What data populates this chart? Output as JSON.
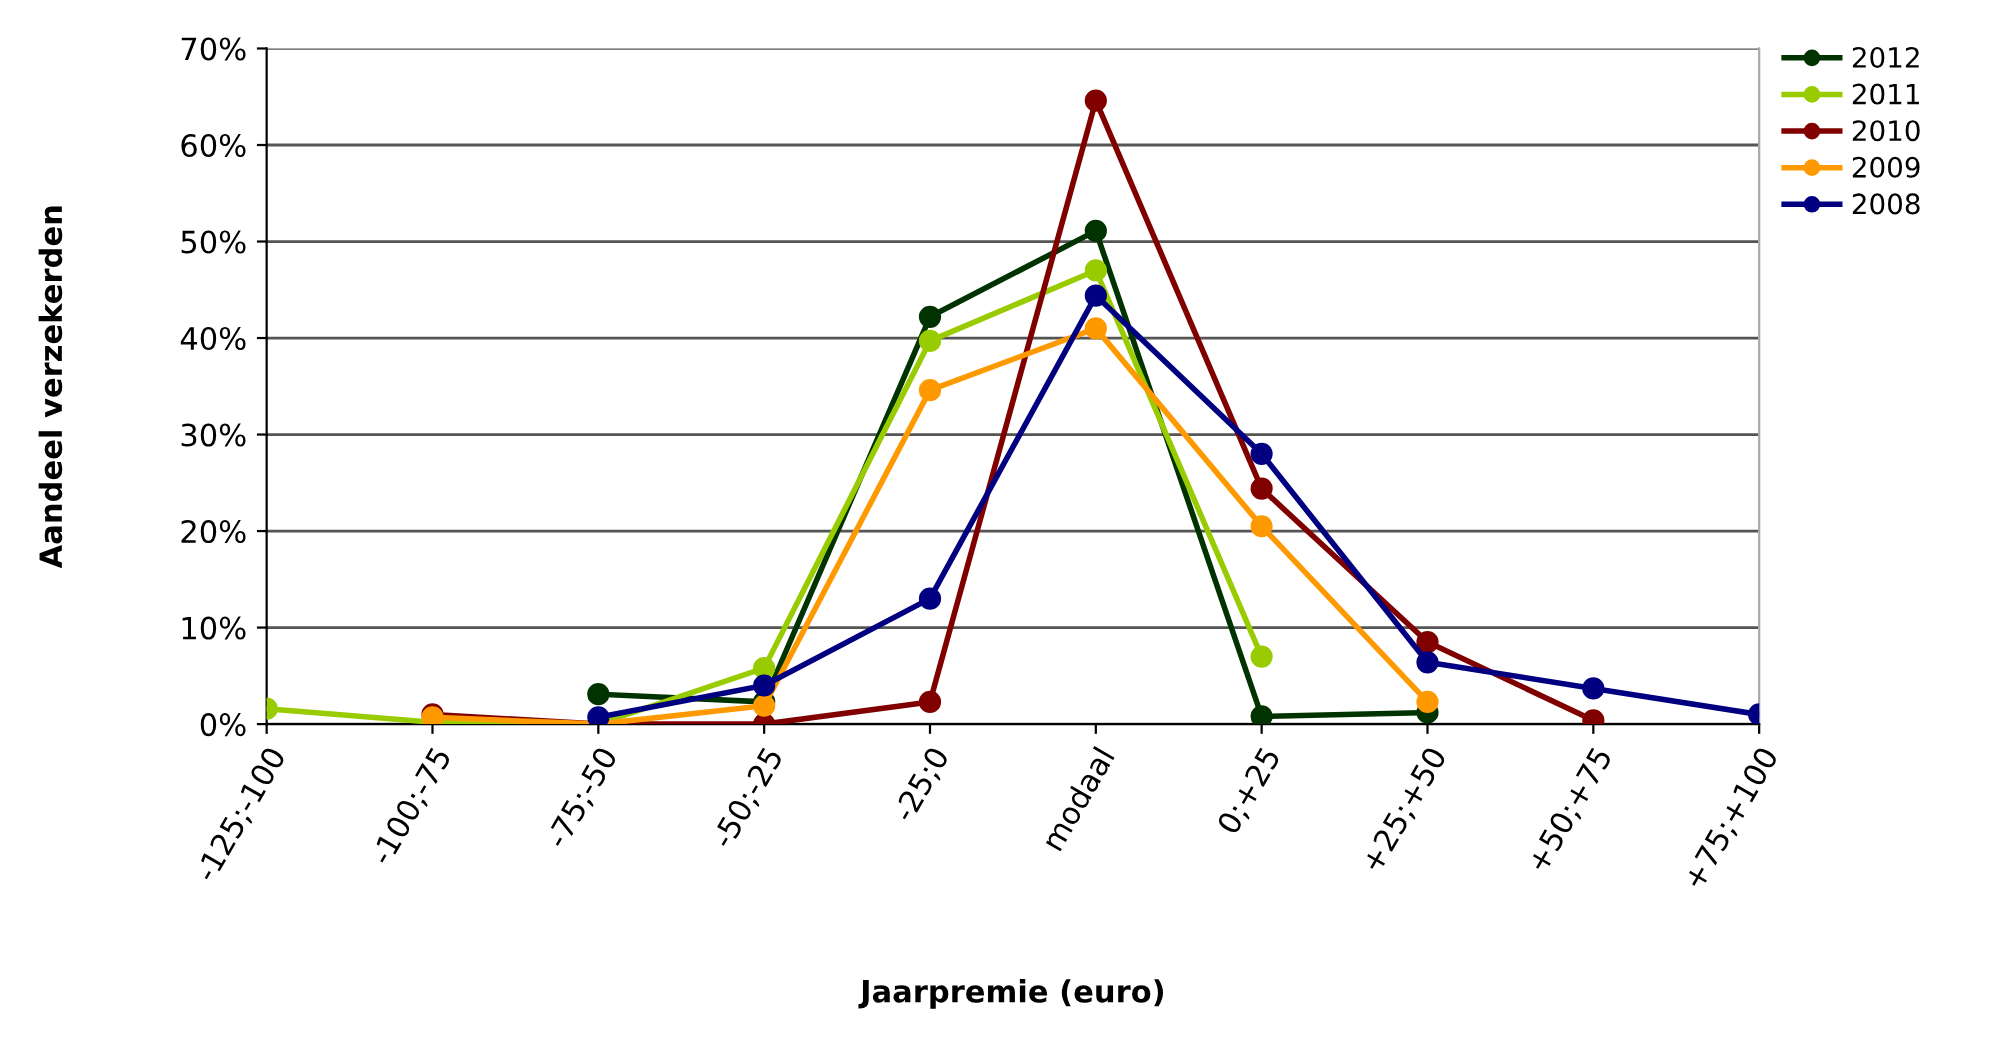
{
  "chart_data": {
    "type": "line",
    "xlabel": "Jaarpremie (euro)",
    "ylabel": "Aandeel verzekerden",
    "categories": [
      "-125;-100",
      "-100;-75",
      "-75;-50",
      "-50;-25",
      "-25;0",
      "modaal",
      "0;+25",
      "+25;+50",
      "+50;+75",
      "+75;+100"
    ],
    "series": [
      {
        "name": "2012",
        "color": "#003300",
        "values": [
          null,
          null,
          3.1,
          2.3,
          42.2,
          51.1,
          0.8,
          1.2,
          null,
          null
        ]
      },
      {
        "name": "2011",
        "color": "#99cc00",
        "values": [
          1.6,
          0.2,
          0,
          5.8,
          39.7,
          47,
          7,
          null,
          null,
          null
        ]
      },
      {
        "name": "2010",
        "color": "#800000",
        "values": [
          null,
          1,
          0,
          0,
          2.3,
          64.6,
          24.4,
          8.5,
          0.4,
          null
        ]
      },
      {
        "name": "2009",
        "color": "#ff9900",
        "values": [
          null,
          0.7,
          0,
          1.9,
          34.6,
          41,
          20.5,
          2.3,
          null,
          null
        ]
      },
      {
        "name": "2008",
        "color": "#000080",
        "values": [
          null,
          null,
          0.7,
          4,
          13,
          44.4,
          28,
          6.4,
          3.7,
          1.0
        ]
      }
    ],
    "ylim": [
      0,
      70
    ],
    "yticks": [
      {
        "value": 0,
        "label": "0%"
      },
      {
        "value": 10,
        "label": "10%"
      },
      {
        "value": 20,
        "label": "20%"
      },
      {
        "value": 30,
        "label": "30%"
      },
      {
        "value": 40,
        "label": "40%"
      },
      {
        "value": 50,
        "label": "50%"
      },
      {
        "value": 60,
        "label": "60%"
      },
      {
        "value": 70,
        "label": "70%"
      }
    ],
    "grid": "y",
    "legend": "top right",
    "marker": "circle",
    "line_style": "solid"
  }
}
